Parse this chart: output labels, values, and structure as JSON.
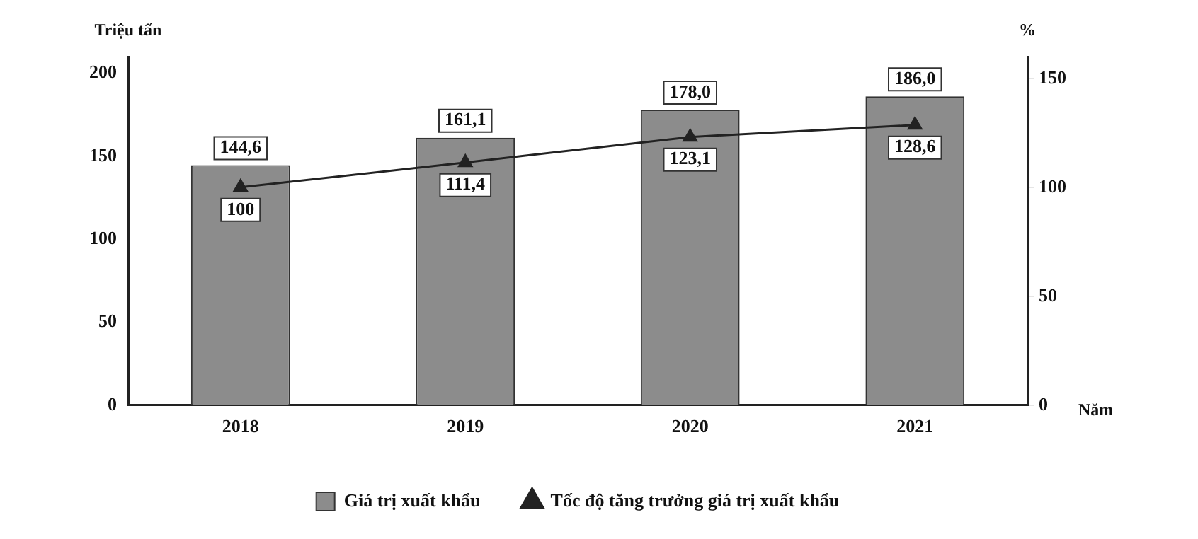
{
  "chart_data": {
    "type": "bar",
    "xlabel": "Năm",
    "ylabel": "Triệu tấn",
    "y2label": "%",
    "categories": [
      "2018",
      "2019",
      "2020",
      "2021"
    ],
    "series": [
      {
        "name": "Giá trị xuất khẩu",
        "color": "#8c8c8c",
        "values": [
          144.6,
          161.1,
          178.0,
          186.0
        ],
        "value_labels": [
          "144,6",
          "161,1",
          "178,0",
          "186,0"
        ]
      },
      {
        "name": "Tốc độ tăng trưởng giá trị xuất khẩu",
        "type": "line",
        "axis": "y2",
        "color": "#222222",
        "marker": "triangle",
        "values": [
          100,
          111.4,
          123.1,
          128.6
        ],
        "value_labels": [
          "100",
          "111,4",
          "123,1",
          "128,6"
        ]
      }
    ],
    "ylim": [
      0,
      210
    ],
    "yticks": [
      0,
      50,
      100,
      150,
      200
    ],
    "y2lim": [
      0,
      160
    ],
    "y2ticks": [
      0,
      50,
      100,
      150
    ],
    "grid": false,
    "legend": "bottom"
  }
}
